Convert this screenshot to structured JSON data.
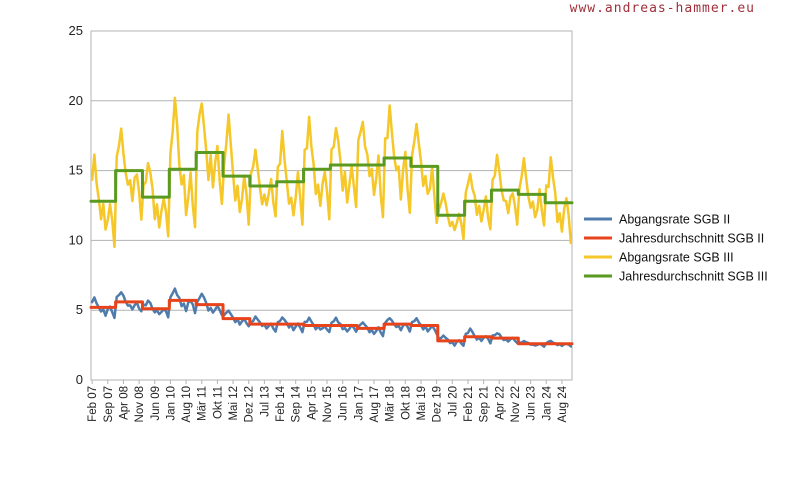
{
  "watermark": "www.andreas-hammer.eu",
  "chart_data": {
    "type": "line",
    "title": "",
    "xlabel": "",
    "ylabel": "",
    "ylim": [
      0,
      25
    ],
    "yticks": [
      0,
      5,
      10,
      15,
      20,
      25
    ],
    "grid": true,
    "legend_position": "right",
    "start": {
      "year": 2007,
      "month": 2
    },
    "end": {
      "year": 2024,
      "month": 12
    },
    "x_tick_labels": [
      "Feb 07",
      "Sep 07",
      "Apr 08",
      "Nov 08",
      "Jun 09",
      "Jan 10",
      "Aug 10",
      "Mär 11",
      "Okt 11",
      "Mai 12",
      "Dez 12",
      "Jul 13",
      "Feb 14",
      "Sep 14",
      "Apr 15",
      "Nov 15",
      "Jun 16",
      "Jan 17",
      "Aug 17",
      "Mär 18",
      "Okt 18",
      "Mai 19",
      "Dez 19",
      "Jul 20",
      "Feb 21",
      "Sep 21",
      "Apr 22",
      "Nov 22",
      "Jun 23",
      "Jan 24",
      "Aug 24"
    ],
    "series": [
      {
        "name": "Abgangsrate SGB II",
        "color": "#4f7cac",
        "width": 2.5,
        "kind": "monthly",
        "year_means": [
          5.2,
          5.6,
          5.1,
          5.7,
          5.4,
          4.4,
          4.0,
          4.0,
          3.9,
          3.9,
          3.7,
          4.0,
          3.9,
          2.8,
          3.1,
          3.0,
          2.6,
          2.6
        ],
        "year_amplitudes": [
          0.7,
          0.8,
          0.6,
          0.9,
          0.8,
          0.6,
          0.5,
          0.5,
          0.5,
          0.5,
          0.5,
          0.5,
          0.5,
          0.4,
          0.5,
          0.4,
          0.2,
          0.2
        ]
      },
      {
        "name": "Jahresdurchschnitt SGB II",
        "color": "#e8441c",
        "width": 3,
        "kind": "annual-step",
        "values": [
          5.2,
          5.6,
          5.1,
          5.7,
          5.4,
          4.4,
          4.0,
          4.0,
          3.9,
          3.9,
          3.7,
          4.0,
          3.9,
          2.8,
          3.1,
          3.0,
          2.6,
          2.6
        ]
      },
      {
        "name": "Abgangsrate SGB III",
        "color": "#f5c728",
        "width": 2.5,
        "kind": "monthly",
        "year_means": [
          12.8,
          15.0,
          13.1,
          15.1,
          16.3,
          14.6,
          13.9,
          14.2,
          15.1,
          15.4,
          15.4,
          15.9,
          15.3,
          11.8,
          12.8,
          13.6,
          13.3,
          12.7
        ],
        "year_amplitudes": [
          3.0,
          3.2,
          2.8,
          4.5,
          3.8,
          3.8,
          2.5,
          3.2,
          3.8,
          3.2,
          3.5,
          3.6,
          3.6,
          1.8,
          2.0,
          2.3,
          2.4,
          2.8
        ]
      },
      {
        "name": "Jahresdurchschnitt SGB III",
        "color": "#5a9a21",
        "width": 3,
        "kind": "annual-step",
        "values": [
          12.8,
          15.0,
          13.1,
          15.1,
          16.3,
          14.6,
          13.9,
          14.2,
          15.1,
          15.4,
          15.4,
          15.9,
          15.3,
          11.8,
          12.8,
          13.6,
          13.3,
          12.7
        ]
      }
    ]
  }
}
